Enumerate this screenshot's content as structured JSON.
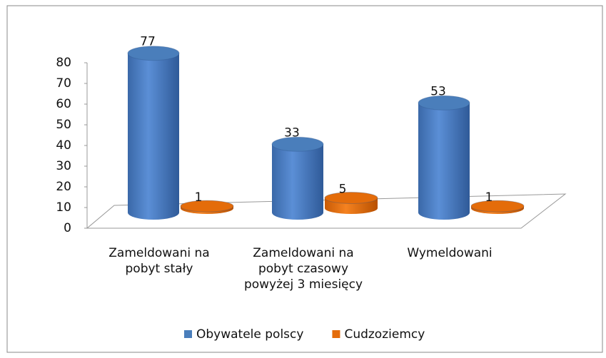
{
  "chart_data": {
    "type": "bar3d",
    "categories": [
      "Zameldowani na pobyt stały",
      "Zameldowani na pobyt czasowy powyżej 3 miesięcy",
      "Wymeldowani"
    ],
    "series": [
      {
        "name": "Obywatele polscy",
        "color": "#4a7ebb",
        "values": [
          77,
          33,
          53
        ]
      },
      {
        "name": "Cudzoziemcy",
        "color": "#e46c0a",
        "values": [
          1,
          5,
          1
        ]
      }
    ],
    "ylim": [
      0,
      80
    ],
    "yticks": [
      0,
      10,
      20,
      30,
      40,
      50,
      60,
      70,
      80
    ],
    "legend": "bottom"
  }
}
